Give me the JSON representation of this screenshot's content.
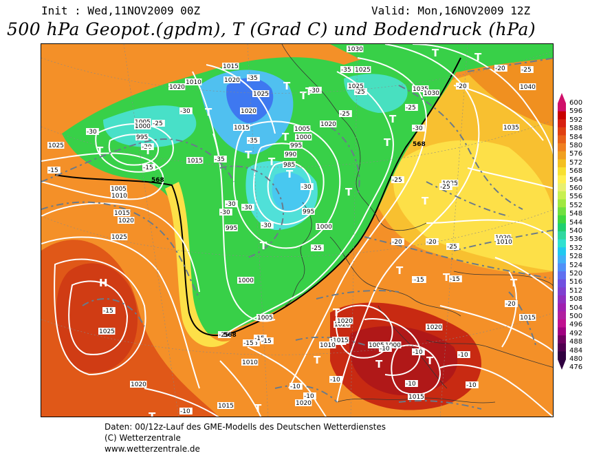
{
  "header": {
    "init": "Init : Wed,11NOV2009 00Z",
    "valid": "Valid: Mon,16NOV2009 12Z",
    "title": "500 hPa Geopot.(gpdm), T (Grad C) und Bodendruck (hPa)"
  },
  "legend": {
    "levels": [
      "600",
      "596",
      "592",
      "588",
      "584",
      "580",
      "576",
      "572",
      "568",
      "564",
      "560",
      "556",
      "552",
      "548",
      "544",
      "540",
      "536",
      "532",
      "528",
      "524",
      "520",
      "516",
      "512",
      "508",
      "504",
      "500",
      "496",
      "492",
      "488",
      "484",
      "480",
      "476"
    ],
    "colors": [
      "#d0106a",
      "#c80000",
      "#d82010",
      "#e04010",
      "#e86018",
      "#f08020",
      "#f0a020",
      "#f4c020",
      "#f8e030",
      "#fff050",
      "#e8f070",
      "#c8f050",
      "#a0e840",
      "#70e040",
      "#40d840",
      "#20d070",
      "#30d8a0",
      "#30e0d0",
      "#20c8f0",
      "#40b0f8",
      "#5090f8",
      "#6070f0",
      "#7050e0",
      "#8040d0",
      "#9030c0",
      "#a020b0",
      "#b020a0",
      "#c01090",
      "#a00080",
      "#700060",
      "#500050",
      "#300040"
    ]
  },
  "map": {
    "pressure_labels": [
      {
        "t": "1030"
      },
      {
        "t": "1025"
      },
      {
        "t": "1015"
      },
      {
        "t": "1020"
      },
      {
        "t": "1025"
      },
      {
        "t": "1010"
      },
      {
        "t": "1020"
      },
      {
        "t": "1005"
      },
      {
        "t": "1000"
      },
      {
        "t": "995"
      },
      {
        "t": "1025"
      },
      {
        "t": "1015"
      },
      {
        "t": "1020"
      },
      {
        "t": "1015"
      },
      {
        "t": "1005"
      },
      {
        "t": "1000"
      },
      {
        "t": "995"
      },
      {
        "t": "990"
      },
      {
        "t": "985"
      },
      {
        "t": "995"
      },
      {
        "t": "1000"
      },
      {
        "t": "995"
      },
      {
        "t": "1000"
      },
      {
        "t": "1005"
      },
      {
        "t": "1010"
      },
      {
        "t": "1015"
      },
      {
        "t": "1020"
      },
      {
        "t": "1025"
      },
      {
        "t": "1025"
      },
      {
        "t": "1020"
      },
      {
        "t": "1015"
      },
      {
        "t": "1005"
      },
      {
        "t": "1010"
      },
      {
        "t": "1020"
      },
      {
        "t": "1025"
      },
      {
        "t": "1035"
      },
      {
        "t": "1040"
      },
      {
        "t": "1030"
      },
      {
        "t": "1035"
      },
      {
        "t": "1025"
      },
      {
        "t": "1020"
      },
      {
        "t": "1010"
      },
      {
        "t": "1015"
      },
      {
        "t": "1020"
      },
      {
        "t": "1025"
      },
      {
        "t": "1020"
      },
      {
        "t": "1015"
      },
      {
        "t": "1010"
      },
      {
        "t": "1020"
      },
      {
        "t": "1000"
      },
      {
        "t": "1005"
      },
      {
        "t": "1015"
      },
      {
        "t": "1020"
      }
    ],
    "temp_labels": [
      {
        "t": "-35"
      },
      {
        "t": "-30"
      },
      {
        "t": "-25"
      },
      {
        "t": "-20"
      },
      {
        "t": "-15"
      },
      {
        "t": "-30"
      },
      {
        "t": "-25"
      },
      {
        "t": "-20"
      },
      {
        "t": "-15"
      },
      {
        "t": "-30"
      },
      {
        "t": "-35"
      },
      {
        "t": "-30"
      },
      {
        "t": "-30"
      },
      {
        "t": "-35"
      },
      {
        "t": "-30"
      },
      {
        "t": "-30"
      },
      {
        "t": "-25"
      },
      {
        "t": "-30"
      },
      {
        "t": "-35"
      },
      {
        "t": "-25"
      },
      {
        "t": "-20"
      },
      {
        "t": "-15"
      },
      {
        "t": "-15"
      },
      {
        "t": "-25"
      },
      {
        "t": "-20"
      },
      {
        "t": "-25"
      },
      {
        "t": "-30"
      },
      {
        "t": "-25"
      },
      {
        "t": "-25"
      },
      {
        "t": "-20"
      },
      {
        "t": "-15"
      },
      {
        "t": "-15"
      },
      {
        "t": "-10"
      },
      {
        "t": "-10"
      },
      {
        "t": "-10"
      },
      {
        "t": "-10"
      },
      {
        "t": "-10"
      },
      {
        "t": "-10"
      },
      {
        "t": "-10"
      },
      {
        "t": "-10"
      },
      {
        "t": "-15"
      },
      {
        "t": "-15"
      },
      {
        "t": "-20"
      },
      {
        "t": "-10"
      },
      {
        "t": "-25"
      },
      {
        "t": "-15"
      },
      {
        "t": "-15"
      },
      {
        "t": "-25"
      }
    ],
    "contour_568": "568",
    "high_label": "H",
    "low_label": "T"
  },
  "footer": {
    "line1": "Daten: 00/12z-Lauf des GME-Modells des Deutschen Wetterdienstes",
    "line2": "(C) Wetterzentrale",
    "line3": "www.wetterzentrale.de"
  }
}
